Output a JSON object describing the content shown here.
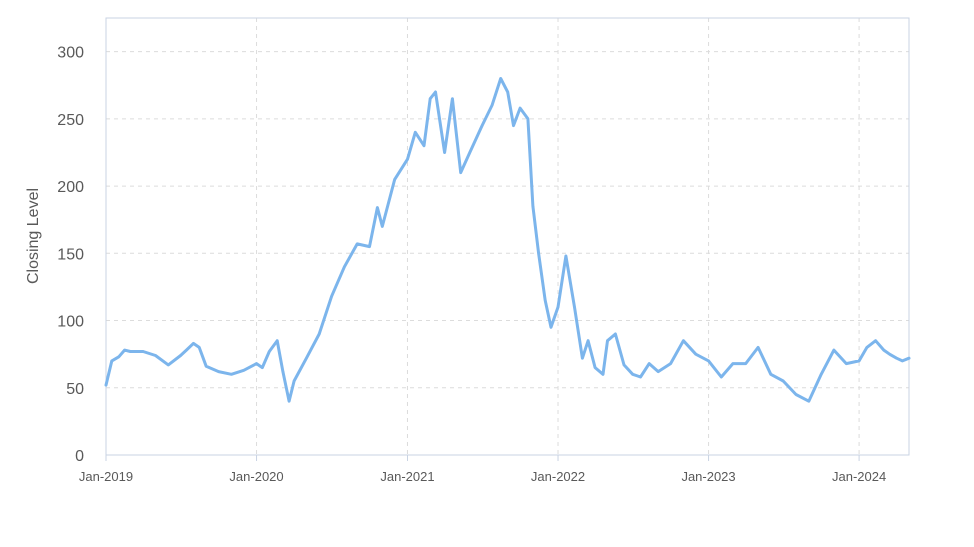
{
  "chart_data": {
    "type": "line",
    "title": "",
    "xlabel": "",
    "ylabel": "Closing Level",
    "x_ticks": [
      "Jan-2019",
      "Jan-2020",
      "Jan-2021",
      "Jan-2022",
      "Jan-2023",
      "Jan-2024"
    ],
    "y_ticks": [
      "0",
      "50",
      "100",
      "150",
      "200",
      "250",
      "300"
    ],
    "ylim": [
      0,
      325
    ],
    "xlim": [
      "2019-01-01",
      "2024-05-01"
    ],
    "grid": true,
    "series": [
      {
        "name": "",
        "color": "#7cb5ec",
        "x": [
          "2019-01-01",
          "2019-01-15",
          "2019-02-01",
          "2019-02-15",
          "2019-03-01",
          "2019-04-01",
          "2019-05-01",
          "2019-06-01",
          "2019-07-01",
          "2019-07-15",
          "2019-08-01",
          "2019-08-15",
          "2019-09-01",
          "2019-10-01",
          "2019-11-01",
          "2019-12-01",
          "2020-01-01",
          "2020-01-15",
          "2020-02-01",
          "2020-02-20",
          "2020-03-05",
          "2020-03-20",
          "2020-04-01",
          "2020-05-01",
          "2020-06-01",
          "2020-07-01",
          "2020-08-01",
          "2020-09-01",
          "2020-10-01",
          "2020-10-20",
          "2020-11-01",
          "2020-12-01",
          "2021-01-01",
          "2021-01-20",
          "2021-02-10",
          "2021-02-25",
          "2021-03-10",
          "2021-04-01",
          "2021-04-20",
          "2021-05-10",
          "2021-06-01",
          "2021-07-01",
          "2021-07-25",
          "2021-08-15",
          "2021-09-01",
          "2021-09-15",
          "2021-10-01",
          "2021-10-20",
          "2021-11-01",
          "2021-11-15",
          "2021-12-01",
          "2021-12-15",
          "2022-01-01",
          "2022-01-20",
          "2022-02-10",
          "2022-03-01",
          "2022-03-15",
          "2022-04-01",
          "2022-04-20",
          "2022-05-01",
          "2022-05-20",
          "2022-06-10",
          "2022-07-01",
          "2022-07-20",
          "2022-08-10",
          "2022-09-01",
          "2022-10-01",
          "2022-11-01",
          "2022-12-01",
          "2023-01-01",
          "2023-02-01",
          "2023-03-01",
          "2023-04-01",
          "2023-05-01",
          "2023-06-01",
          "2023-07-01",
          "2023-08-01",
          "2023-09-01",
          "2023-10-01",
          "2023-11-01",
          "2023-12-01",
          "2024-01-01",
          "2024-01-20",
          "2024-02-10",
          "2024-03-01",
          "2024-03-15",
          "2024-04-01",
          "2024-04-15",
          "2024-05-01"
        ],
        "values": [
          52,
          70,
          73,
          78,
          77,
          77,
          74,
          67,
          74,
          78,
          83,
          80,
          66,
          62,
          60,
          63,
          68,
          65,
          77,
          85,
          62,
          40,
          55,
          72,
          90,
          118,
          140,
          157,
          155,
          184,
          170,
          205,
          220,
          240,
          230,
          265,
          270,
          225,
          265,
          210,
          225,
          245,
          260,
          280,
          270,
          245,
          258,
          250,
          185,
          150,
          115,
          95,
          110,
          148,
          110,
          72,
          85,
          65,
          60,
          85,
          90,
          67,
          60,
          58,
          68,
          62,
          68,
          85,
          75,
          70,
          58,
          68,
          68,
          80,
          60,
          55,
          45,
          40,
          60,
          78,
          68,
          70,
          80,
          85,
          78,
          75,
          72,
          70,
          72
        ]
      }
    ]
  }
}
